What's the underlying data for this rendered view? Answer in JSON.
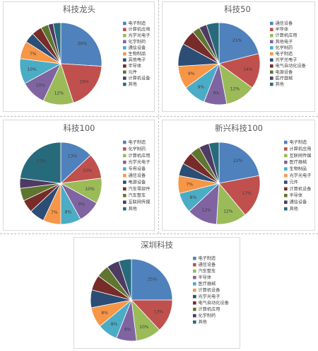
{
  "chart_data": [
    {
      "type": "pie",
      "title": "科技龙头",
      "categories": [
        "电子制造",
        "计算机应用",
        "光学光电子",
        "化学制药",
        "通信设备",
        "生物制品",
        "其他电子",
        "半导体",
        "元件",
        "计算机设备",
        "其他"
      ],
      "values": [
        26,
        19,
        12,
        10,
        10,
        7,
        4,
        4,
        3,
        2,
        3
      ],
      "data_labels": [
        "26%",
        "19%",
        "12%",
        "10%",
        "10%",
        "7%",
        "",
        "",
        "",
        "",
        ""
      ],
      "colors": [
        "#4f81bd",
        "#c0504d",
        "#9bbb59",
        "#8064a2",
        "#4bacc6",
        "#f79646",
        "#2c4d75",
        "#772c2a",
        "#5f7530",
        "#4d3b62",
        "#276a7c"
      ],
      "legend_position": "right"
    },
    {
      "type": "pie",
      "title": "科技50",
      "categories": [
        "通信设备",
        "半导体",
        "计算机应用",
        "其他电子",
        "化学制药",
        "电子制造",
        "光学光电子",
        "电气自动化设备",
        "电源设备",
        "医疗器械",
        "其他"
      ],
      "values": [
        21,
        14,
        12,
        9,
        9,
        9,
        9,
        6,
        3,
        3,
        5
      ],
      "data_labels": [
        "21%",
        "14%",
        "12%",
        "9%",
        "9%",
        "9%",
        "",
        "",
        "",
        "",
        ""
      ],
      "colors": [
        "#4f81bd",
        "#c0504d",
        "#9bbb59",
        "#8064a2",
        "#4bacc6",
        "#f79646",
        "#2c4d75",
        "#772c2a",
        "#5f7530",
        "#4d3b62",
        "#276a7c"
      ],
      "legend_position": "right"
    },
    {
      "type": "pie",
      "title": "科技100",
      "categories": [
        "电子制造",
        "化学制药",
        "计算机应用",
        "光学光电子",
        "专用设备",
        "通信设备",
        "电源设备",
        "汽车零部件",
        "汽车整车",
        "互联网传媒",
        "其他"
      ],
      "values": [
        13,
        10,
        10,
        9,
        8,
        7,
        6,
        5,
        5,
        4,
        23
      ],
      "data_labels": [
        "13%",
        "10%",
        "10%",
        "9%",
        "8%",
        "7%",
        "",
        "",
        "",
        "",
        "23%"
      ],
      "colors": [
        "#4f81bd",
        "#c0504d",
        "#9bbb59",
        "#8064a2",
        "#4bacc6",
        "#f79646",
        "#2c4d75",
        "#772c2a",
        "#5f7530",
        "#4d3b62",
        "#276a7c"
      ],
      "legend_position": "right"
    },
    {
      "type": "pie",
      "title": "新兴科技100",
      "categories": [
        "电子制造",
        "计算机应用",
        "互联网传媒",
        "医疗器械",
        "生物制品",
        "光学光电子",
        "元件",
        "计算机设备",
        "半导体",
        "通信设备",
        "其他"
      ],
      "values": [
        22,
        17,
        12,
        12,
        8,
        7,
        5,
        5,
        4,
        4,
        4
      ],
      "data_labels": [
        "22%",
        "17%",
        "12%",
        "12%",
        "8%",
        "7%",
        "",
        "",
        "",
        "",
        ""
      ],
      "colors": [
        "#4f81bd",
        "#c0504d",
        "#9bbb59",
        "#8064a2",
        "#4bacc6",
        "#f79646",
        "#2c4d75",
        "#772c2a",
        "#5f7530",
        "#4d3b62",
        "#276a7c"
      ],
      "legend_position": "right"
    },
    {
      "type": "pie",
      "title": "深圳科技",
      "categories": [
        "电子制造",
        "通信设备",
        "汽车整车",
        "半导体",
        "医疗器械",
        "计算机设备",
        "光学光电子",
        "电气自动化设备",
        "计算机应用",
        "化学制药",
        "其他"
      ],
      "values": [
        25,
        13,
        10,
        8,
        8,
        8,
        7,
        6,
        5,
        5,
        5
      ],
      "data_labels": [
        "25%",
        "13%",
        "10%",
        "8%",
        "8%",
        "8%",
        "",
        "",
        "",
        "",
        ""
      ],
      "colors": [
        "#4f81bd",
        "#c0504d",
        "#9bbb59",
        "#8064a2",
        "#4bacc6",
        "#f79646",
        "#2c4d75",
        "#772c2a",
        "#5f7530",
        "#4d3b62",
        "#276a7c"
      ],
      "legend_position": "right"
    }
  ]
}
